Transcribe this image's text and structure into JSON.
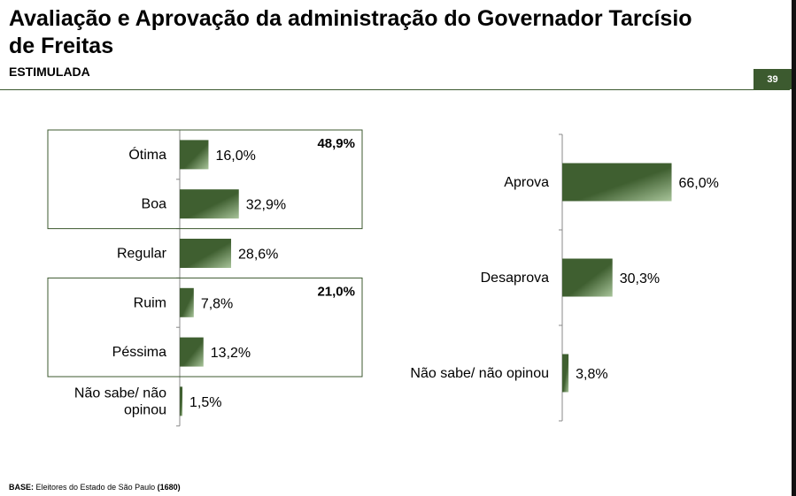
{
  "header": {
    "title": "Avaliação e Aprovação da administração do Governador Tarcísio de Freitas",
    "subtitle": "ESTIMULADA",
    "page_number": "39"
  },
  "colors": {
    "accent": "#3c5a2f",
    "bar_dark": "#3f5f30",
    "bar_light": "#a8c49a"
  },
  "chart_data": [
    {
      "type": "bar",
      "orientation": "horizontal",
      "categories": [
        "Ótima",
        "Boa",
        "Regular",
        "Ruim",
        "Péssima",
        "Não sabe/ não opinou"
      ],
      "values": [
        16.0,
        32.9,
        28.6,
        7.8,
        13.2,
        1.5
      ],
      "value_labels": [
        "16,0%",
        "32,9%",
        "28,6%",
        "7,8%",
        "13,2%",
        "1,5%"
      ],
      "groups": [
        {
          "label": "48,9%",
          "members": [
            "Ótima",
            "Boa"
          ]
        },
        {
          "label": "21,0%",
          "members": [
            "Ruim",
            "Péssima"
          ]
        }
      ],
      "xlim": [
        0,
        70
      ],
      "grid": false
    },
    {
      "type": "bar",
      "orientation": "horizontal",
      "categories": [
        "Aprova",
        "Desaprova",
        "Não sabe/ não opinou"
      ],
      "values": [
        66.0,
        30.3,
        3.8
      ],
      "value_labels": [
        "66,0%",
        "30,3%",
        "3,8%"
      ],
      "xlim": [
        0,
        70
      ],
      "grid": false
    }
  ],
  "footer": {
    "base_label": "BASE:",
    "base_text": "Eleitores do Estado de São Paulo",
    "base_n": "(1680)"
  }
}
